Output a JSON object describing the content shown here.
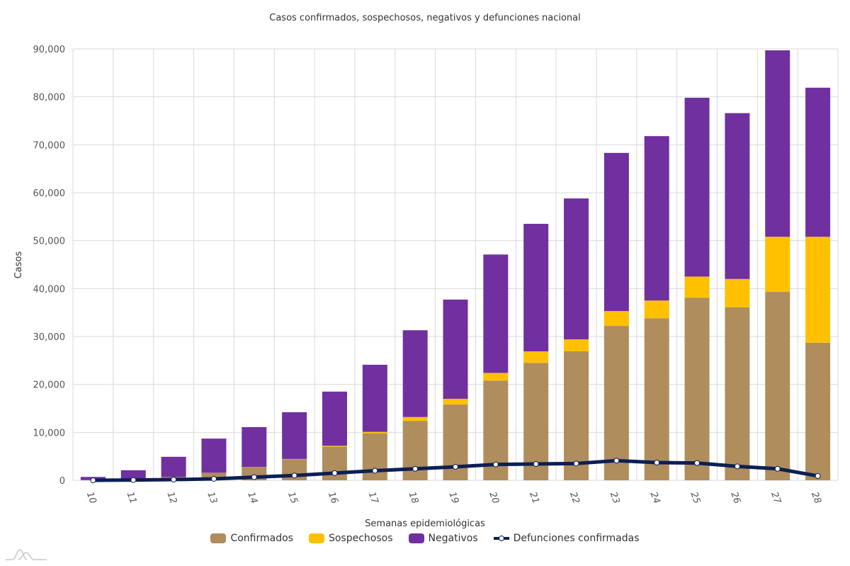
{
  "chart_data": {
    "type": "bar",
    "stacked": true,
    "title": "Casos confirmados, sospechosos, negativos y defunciones nacional",
    "xlabel": "Semanas epidemiológicas",
    "ylabel": "Casos",
    "ylim": [
      0,
      90000
    ],
    "yticks": [
      0,
      10000,
      20000,
      30000,
      40000,
      50000,
      60000,
      70000,
      80000,
      90000
    ],
    "ytick_labels": [
      "0",
      "10,000",
      "20,000",
      "30,000",
      "40,000",
      "50,000",
      "60,000",
      "70,000",
      "80,000",
      "90,000"
    ],
    "grid": true,
    "legend_position": "bottom-center",
    "categories": [
      "10",
      "11",
      "12",
      "13",
      "14",
      "15",
      "16",
      "17",
      "18",
      "19",
      "20",
      "21",
      "22",
      "23",
      "24",
      "25",
      "26",
      "27",
      "28"
    ],
    "series": [
      {
        "name": "Confirmados",
        "kind": "bar",
        "color": "#b08d5c",
        "values": [
          50,
          100,
          600,
          1500,
          2700,
          4400,
          7000,
          9800,
          12400,
          15800,
          20800,
          24500,
          26900,
          32200,
          33800,
          38100,
          36100,
          39300,
          28700
        ]
      },
      {
        "name": "Sospechosos",
        "kind": "bar",
        "color": "#ffc000",
        "values": [
          0,
          0,
          50,
          50,
          50,
          50,
          200,
          300,
          800,
          1200,
          1600,
          2400,
          2500,
          3100,
          3700,
          4400,
          5900,
          11500,
          22100
        ]
      },
      {
        "name": "Negativos",
        "kind": "bar",
        "color": "#7030a0",
        "values": [
          650,
          2000,
          4250,
          7150,
          8350,
          9750,
          11300,
          14000,
          18100,
          20700,
          24700,
          26600,
          29400,
          33000,
          34300,
          37300,
          34600,
          38900,
          31100
        ]
      },
      {
        "name": "Defunciones confirmadas",
        "kind": "line",
        "color": "#0b1f55",
        "values": [
          0,
          50,
          150,
          300,
          650,
          1000,
          1500,
          2000,
          2400,
          2800,
          3300,
          3400,
          3500,
          4100,
          3700,
          3600,
          2900,
          2400,
          900
        ]
      }
    ]
  },
  "colors": {
    "grid": "#d9d9d9",
    "line_marker_fill": "#ffffff"
  },
  "logo": {
    "icon": "mountain-logo-icon"
  }
}
